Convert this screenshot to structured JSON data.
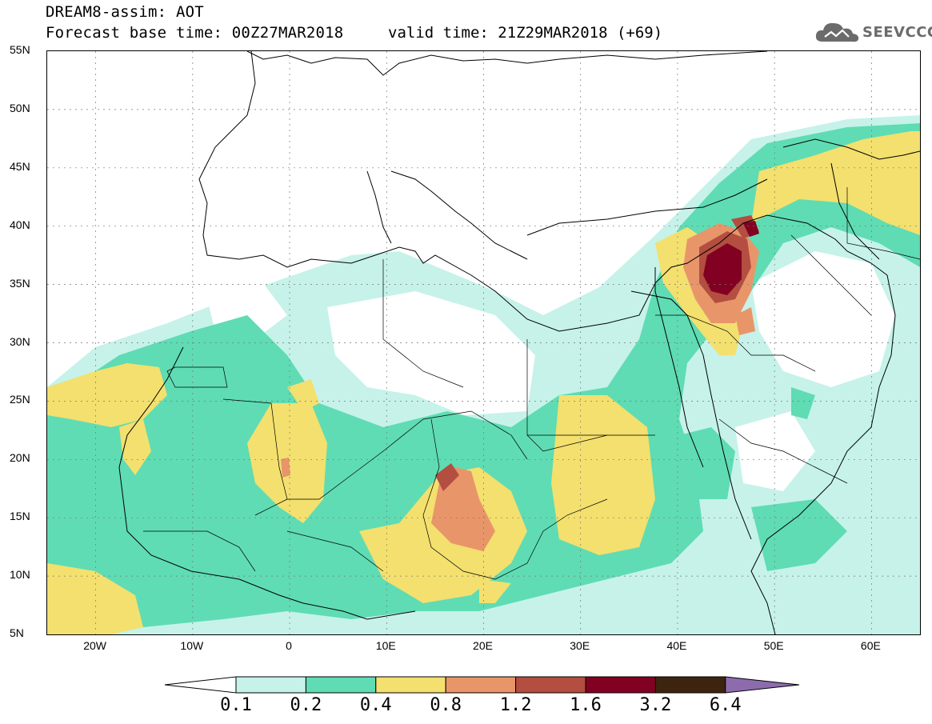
{
  "title": {
    "line1": "DREAM8-assim: AOT",
    "line2": "Forecast base time: 00Z27MAR2018",
    "valid": "valid time: 21Z29MAR2018 (+69)"
  },
  "logo": {
    "text": "SEEVCCC",
    "icon": "cloud-icon"
  },
  "map": {
    "lat_labels": [
      "55N",
      "50N",
      "45N",
      "40N",
      "35N",
      "30N",
      "25N",
      "20N",
      "15N",
      "10N",
      "5N"
    ],
    "lon_labels": [
      "20W",
      "10W",
      "0",
      "10E",
      "20E",
      "30E",
      "40E",
      "50E",
      "60E"
    ],
    "lat_range": [
      5,
      55
    ],
    "lon_range": [
      -25,
      65
    ],
    "gridlines": true
  },
  "legend": {
    "labels": [
      "0.1",
      "0.2",
      "0.4",
      "0.8",
      "1.2",
      "1.6",
      "3.2",
      "6.4"
    ],
    "colors": [
      "#ffffff",
      "#c6f2ea",
      "#5fdcb3",
      "#f3e06e",
      "#e9956a",
      "#b34e40",
      "#820021",
      "#3d2411",
      "#8d6cae"
    ]
  }
}
